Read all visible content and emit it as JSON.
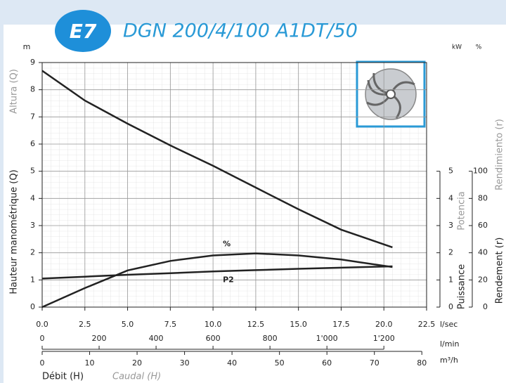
{
  "chart_data": {
    "type": "line",
    "badge": "E7",
    "title": "DGN 200/4/100 A1DT/50",
    "y_label": "Hauteur manométrique (Q)",
    "y_label_alt": "Altura (Q)",
    "y_unit": "m",
    "y2_label": "Puissance",
    "y2_label_alt": "Potencia",
    "y2_unit": "kW",
    "y3_label": "Rendement (r)",
    "y3_label_alt": "Rendimiento (r)",
    "y3_unit": "%",
    "x_label": "Débit (H)",
    "x_label_alt": "Caudal (H)",
    "x_unit": "l/sec",
    "x2_unit": "l/min",
    "x3_unit": "m³/h",
    "grid": true,
    "xlim": [
      0,
      22.5
    ],
    "xticks": [
      {
        "value": 0,
        "label": "0.0"
      },
      2.5,
      {
        "value": 5,
        "label": "5.0"
      },
      7.5,
      {
        "value": 10,
        "label": "10.0"
      },
      12.5,
      {
        "value": 15,
        "label": "15.0"
      },
      17.5,
      {
        "value": 20,
        "label": "20.0"
      },
      22.5
    ],
    "x2lim": [
      0,
      1350
    ],
    "x2ticks": [
      0,
      200,
      400,
      600,
      800,
      {
        "value": 1000,
        "label": "1'000"
      },
      {
        "value": 1200,
        "label": "1'200"
      }
    ],
    "x3lim": [
      0,
      81
    ],
    "x3ticks": [
      0,
      10,
      20,
      30,
      40,
      50,
      60,
      70,
      80
    ],
    "ylim": [
      0,
      9
    ],
    "yticks": [
      0,
      1,
      2,
      3,
      4,
      5,
      6,
      7,
      8,
      9
    ],
    "y2lim": [
      0,
      9
    ],
    "y2ticks": [
      0,
      1,
      2,
      3,
      4,
      5
    ],
    "y3lim": [
      0,
      180
    ],
    "y3ticks": [
      0,
      20,
      40,
      60,
      80,
      100
    ],
    "x": [
      0,
      2.5,
      5,
      7.5,
      10,
      12.5,
      15,
      17.5,
      20.5
    ],
    "series": [
      {
        "color": "#222222",
        "values": [
          8.7,
          7.6,
          6.75,
          5.95,
          5.2,
          4.4,
          3.6,
          2.85,
          2.2
        ]
      },
      {
        "name": "%",
        "color": "#222222",
        "axis": "y3",
        "values": [
          0,
          14,
          27,
          34,
          38,
          39.5,
          38,
          35,
          29.5
        ]
      },
      {
        "name": "P2",
        "color": "#222222",
        "axis": "y2",
        "values": [
          1.05,
          1.12,
          1.19,
          1.25,
          1.31,
          1.36,
          1.41,
          1.45,
          1.5
        ]
      }
    ]
  }
}
